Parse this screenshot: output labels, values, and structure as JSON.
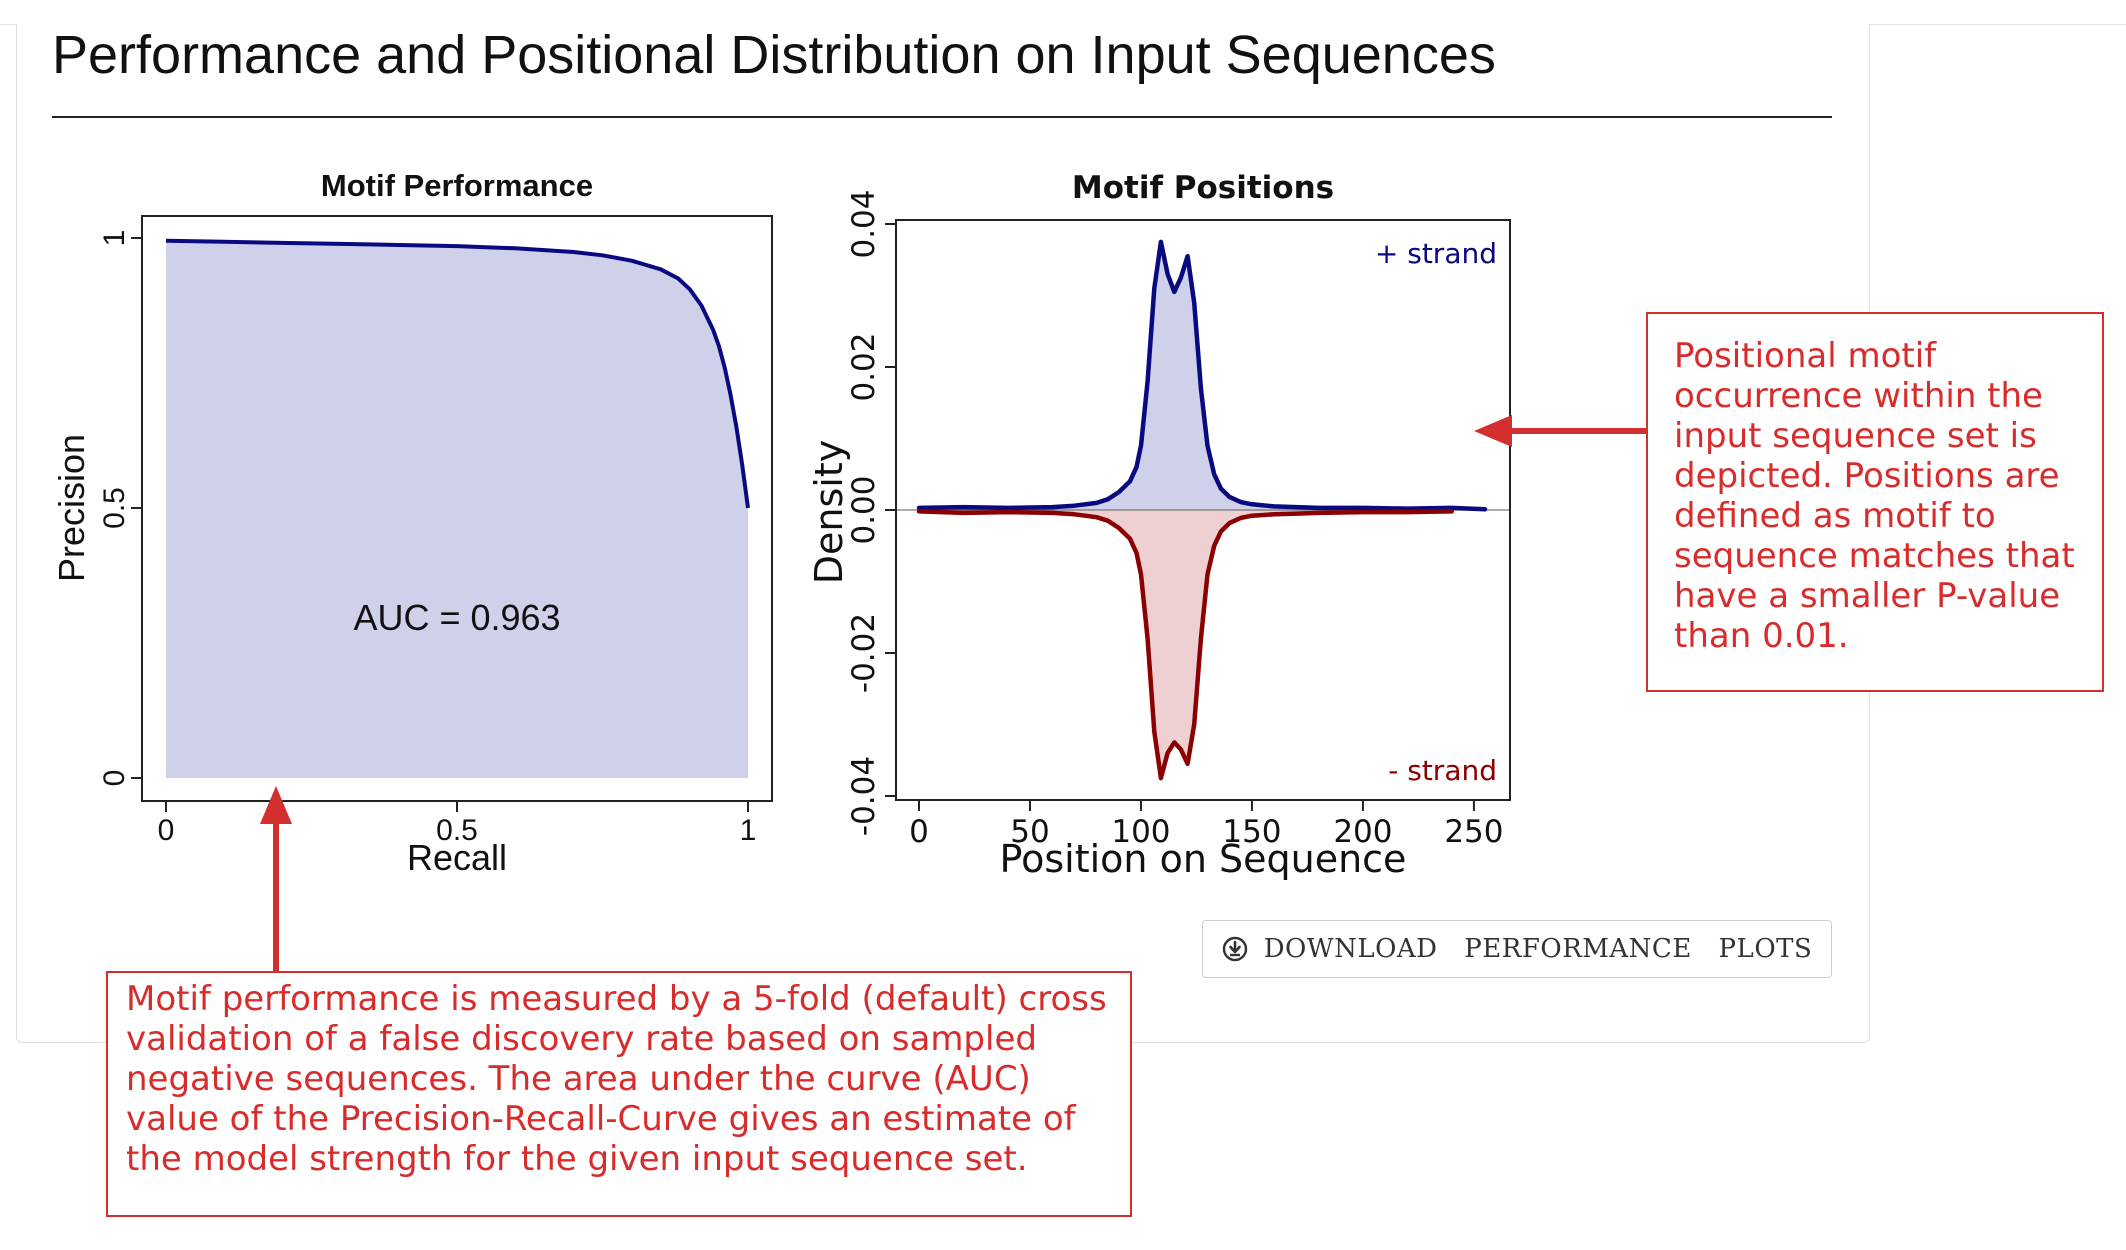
{
  "page": {
    "title": "Performance and Positional Distribution on Input Sequences",
    "download_label": "DOWNLOAD PERFORMANCE PLOTS",
    "download_icon": "download-circle-icon"
  },
  "annotations": {
    "right_text": "Positional motif occurrence within the input sequence set is depicted. Positions are defined as motif to sequence matches that have a smaller P-value than 0.01.",
    "bottom_text": "Motif performance is measured by a 5-fold (default) cross validation of a false discovery rate based on sampled negative sequences. The area under the curve (AUC) value of the Precision-Recall-Curve gives an estimate of the model strength for the given input sequence set.",
    "color": "#d32f2f"
  },
  "chart_data": [
    {
      "type": "area",
      "title": "Motif Performance",
      "xlabel": "Recall",
      "ylabel": "Precision",
      "xlim": [
        0,
        1
      ],
      "ylim": [
        0,
        1
      ],
      "xticks": [
        "0",
        "0.5",
        "1"
      ],
      "yticks": [
        "0",
        "0.5",
        "1"
      ],
      "annotation": "AUC = 0.963",
      "line_color": "#0a0a80",
      "fill_color": "#cfd0ea",
      "series": [
        {
          "x": [
            0,
            0.05,
            0.1,
            0.2,
            0.3,
            0.4,
            0.5,
            0.6,
            0.7,
            0.75,
            0.8,
            0.85,
            0.88,
            0.9,
            0.92,
            0.94,
            0.95,
            0.96,
            0.97,
            0.98,
            0.99,
            1.0
          ],
          "y": [
            0.995,
            0.994,
            0.993,
            0.991,
            0.989,
            0.987,
            0.985,
            0.981,
            0.974,
            0.968,
            0.958,
            0.942,
            0.925,
            0.905,
            0.875,
            0.83,
            0.8,
            0.76,
            0.71,
            0.65,
            0.58,
            0.5
          ]
        }
      ]
    },
    {
      "type": "area",
      "title": "Motif Positions",
      "xlabel": "Position on Sequence",
      "ylabel": "Density",
      "xlim": [
        0,
        255
      ],
      "ylim": [
        -0.04,
        0.04
      ],
      "xticks": [
        "0",
        "50",
        "100",
        "150",
        "200",
        "250"
      ],
      "yticks": [
        "-0.04",
        "-0.02",
        "0.00",
        "0.02",
        "0.04"
      ],
      "series": [
        {
          "name": "+ strand",
          "color": "#0a0a80",
          "fill": "#cfd0ea",
          "x": [
            0,
            20,
            40,
            60,
            70,
            80,
            85,
            90,
            95,
            98,
            100,
            103,
            106,
            109,
            112,
            115,
            118,
            121,
            124,
            127,
            130,
            133,
            136,
            140,
            145,
            150,
            160,
            170,
            180,
            200,
            220,
            240,
            255
          ],
          "y": [
            0.0003,
            0.0004,
            0.0003,
            0.0004,
            0.0006,
            0.001,
            0.0015,
            0.0025,
            0.004,
            0.006,
            0.009,
            0.018,
            0.031,
            0.0375,
            0.033,
            0.0305,
            0.0325,
            0.0355,
            0.029,
            0.017,
            0.009,
            0.005,
            0.003,
            0.0018,
            0.0011,
            0.0008,
            0.0005,
            0.0004,
            0.0003,
            0.0003,
            0.0002,
            0.0003,
            0.0001
          ]
        },
        {
          "name": "- strand",
          "color": "#8b0000",
          "fill": "#eed0d2",
          "x": [
            0,
            20,
            40,
            60,
            70,
            80,
            85,
            90,
            95,
            98,
            100,
            103,
            106,
            109,
            112,
            115,
            118,
            121,
            124,
            127,
            130,
            133,
            136,
            140,
            145,
            150,
            160,
            170,
            180,
            200,
            220,
            240
          ],
          "y": [
            -0.0002,
            -0.0004,
            -0.0003,
            -0.0004,
            -0.0006,
            -0.001,
            -0.0015,
            -0.0025,
            -0.004,
            -0.006,
            -0.009,
            -0.018,
            -0.031,
            -0.0375,
            -0.034,
            -0.0325,
            -0.0335,
            -0.0355,
            -0.03,
            -0.018,
            -0.009,
            -0.005,
            -0.003,
            -0.0018,
            -0.0011,
            -0.0008,
            -0.0006,
            -0.0005,
            -0.0004,
            -0.0003,
            -0.0003,
            -0.0002
          ]
        }
      ]
    }
  ]
}
